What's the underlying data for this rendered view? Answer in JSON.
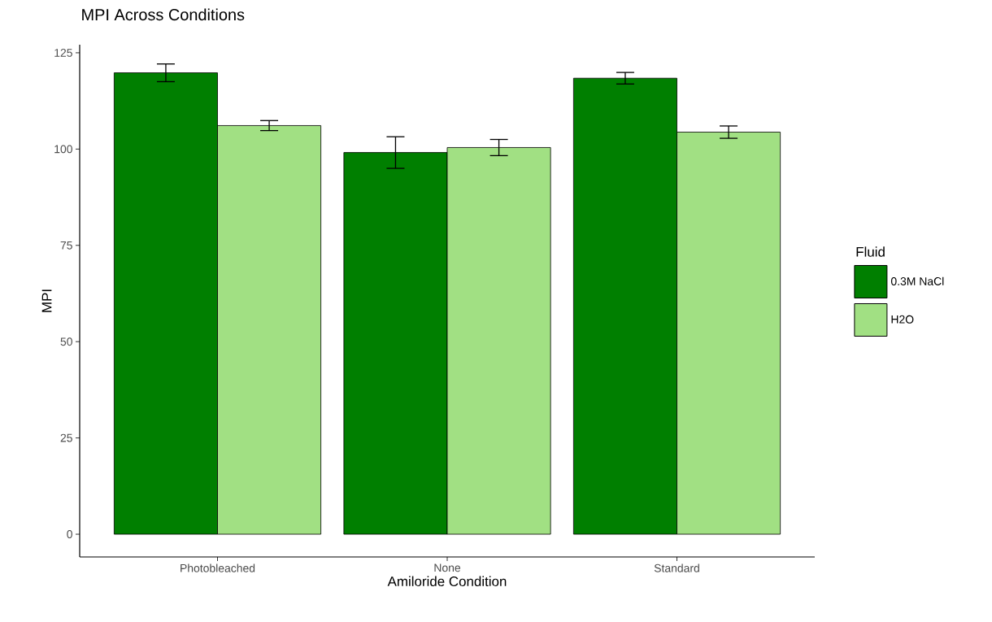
{
  "chart_data": {
    "type": "bar",
    "title": "MPI Across Conditions",
    "xlabel": "Amiloride Condition",
    "ylabel": "MPI",
    "legend_title": "Fluid",
    "categories": [
      "Photobleached",
      "None",
      "Standard"
    ],
    "series": [
      {
        "name": "0.3M NaCl",
        "color": "#007f00",
        "values": [
          119.8,
          99.1,
          118.4
        ],
        "errors": [
          2.3,
          4.1,
          1.5
        ]
      },
      {
        "name": "H2O",
        "color": "#a1e083",
        "values": [
          106.1,
          100.4,
          104.4
        ],
        "errors": [
          1.3,
          2.1,
          1.6
        ]
      }
    ],
    "ylim": [
      -5.9,
      127.1
    ],
    "yticks": [
      0,
      25,
      50,
      75,
      100,
      125
    ],
    "grid": false,
    "legend": "right"
  }
}
